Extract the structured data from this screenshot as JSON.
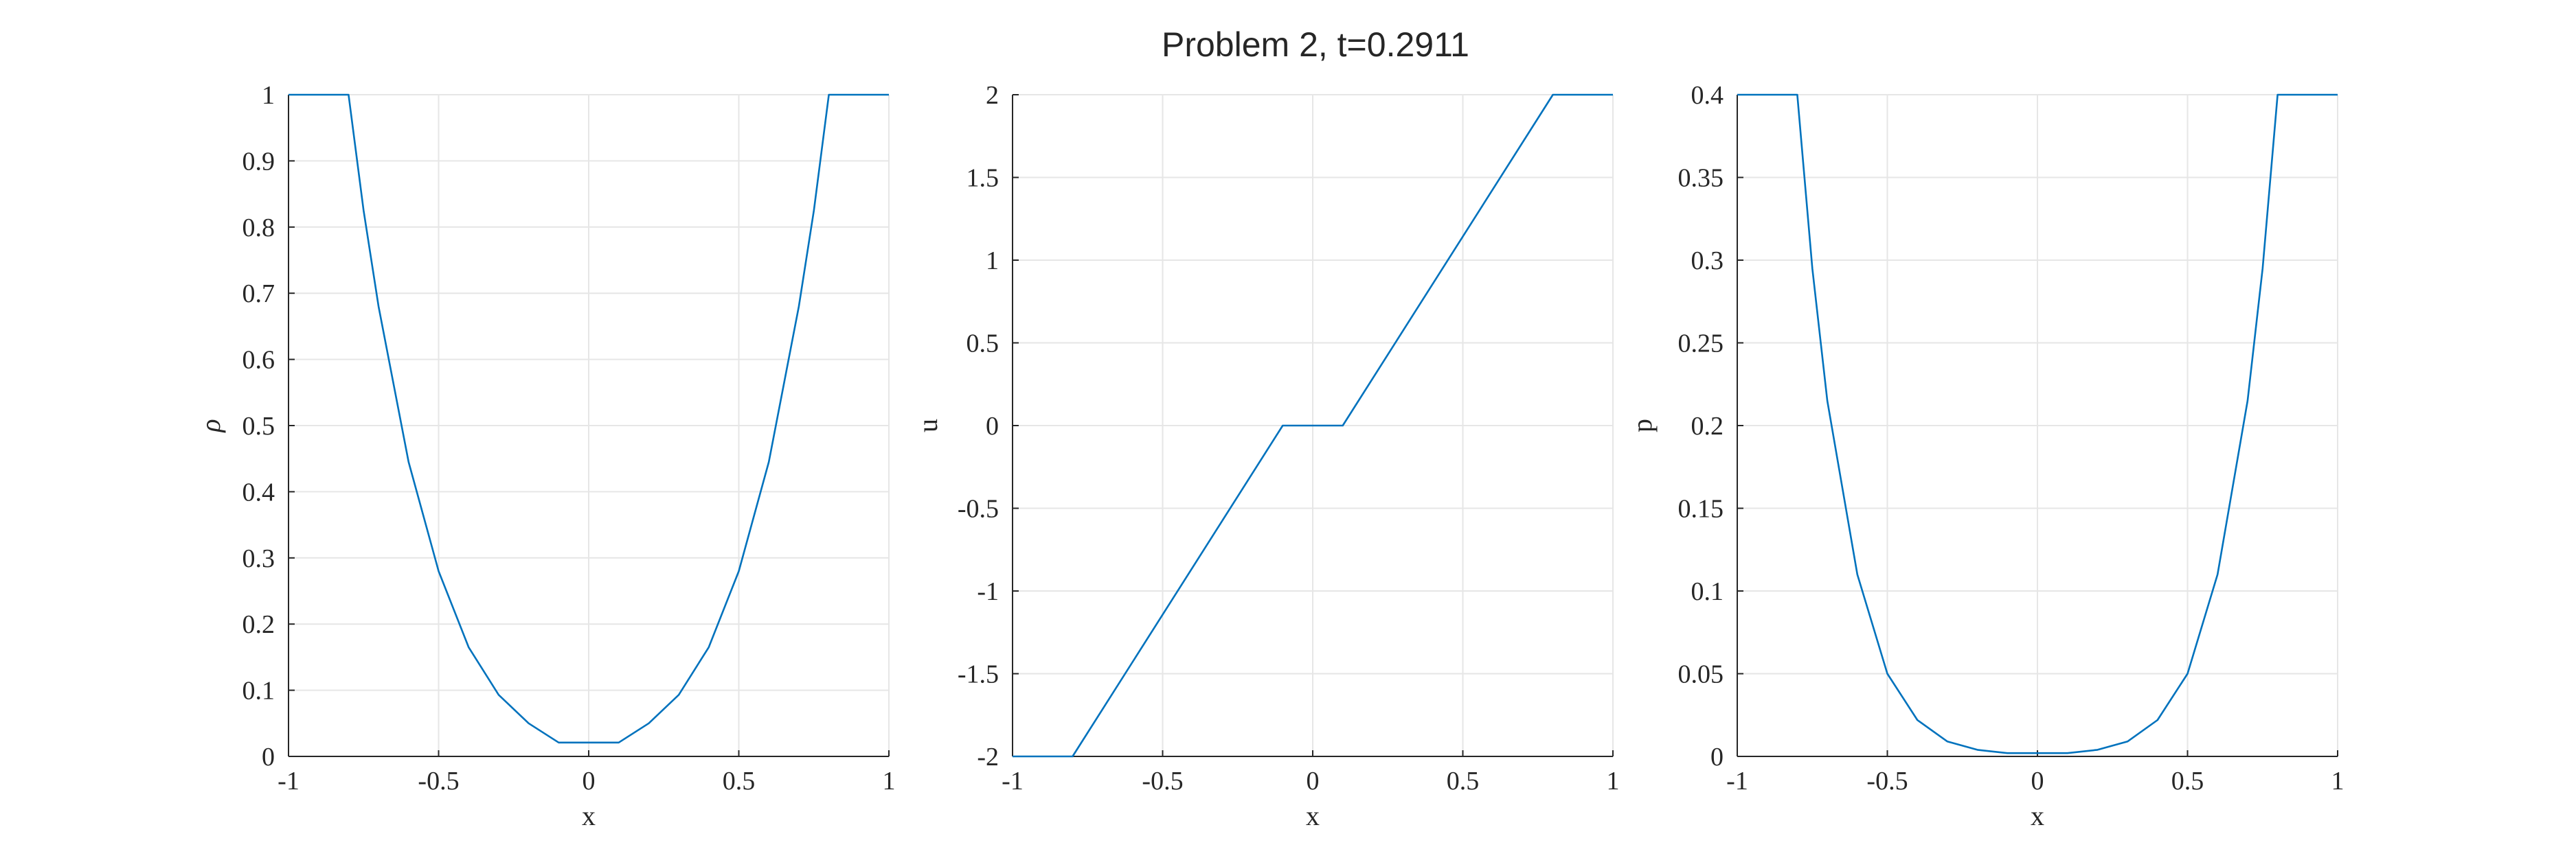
{
  "figure": {
    "title": "Problem 2, t=0.2911"
  },
  "chart_data": [
    {
      "type": "line",
      "title": "",
      "xlabel": "x",
      "ylabel": "ρ",
      "xlim": [
        -1,
        1
      ],
      "ylim": [
        0,
        1
      ],
      "xticks": [
        -1,
        -0.5,
        0,
        0.5,
        1
      ],
      "xtick_labels": [
        "-1",
        "-0.5",
        "0",
        "0.5",
        "1"
      ],
      "yticks": [
        0,
        0.1,
        0.2,
        0.3,
        0.4,
        0.5,
        0.6,
        0.7,
        0.8,
        0.9,
        1
      ],
      "ytick_labels": [
        "0",
        "0.1",
        "0.2",
        "0.3",
        "0.4",
        "0.5",
        "0.6",
        "0.7",
        "0.8",
        "0.9",
        "1"
      ],
      "grid": true,
      "color": "#0072BD",
      "series": [
        {
          "x": [
            -1,
            -0.8,
            -0.75,
            -0.7,
            -0.6,
            -0.5,
            -0.4,
            -0.3,
            -0.2,
            -0.1,
            0.1,
            0.2,
            0.3,
            0.4,
            0.5,
            0.6,
            0.7,
            0.75,
            0.8,
            1
          ],
          "y": [
            1,
            1,
            0.825,
            0.68,
            0.445,
            0.28,
            0.165,
            0.093,
            0.05,
            0.021,
            0.021,
            0.05,
            0.093,
            0.165,
            0.28,
            0.445,
            0.68,
            0.825,
            1,
            1
          ]
        }
      ]
    },
    {
      "type": "line",
      "title": "",
      "xlabel": "x",
      "ylabel": "u",
      "xlim": [
        -1,
        1
      ],
      "ylim": [
        -2,
        2
      ],
      "xticks": [
        -1,
        -0.5,
        0,
        0.5,
        1
      ],
      "xtick_labels": [
        "-1",
        "-0.5",
        "0",
        "0.5",
        "1"
      ],
      "yticks": [
        -2,
        -1.5,
        -1,
        -0.5,
        0,
        0.5,
        1,
        1.5,
        2
      ],
      "ytick_labels": [
        "-2",
        "-1.5",
        "-1",
        "-0.5",
        "0",
        "0.5",
        "1",
        "1.5",
        "2"
      ],
      "grid": true,
      "color": "#0072BD",
      "series": [
        {
          "x": [
            -1,
            -0.8,
            -0.1,
            0.1,
            0.8,
            1
          ],
          "y": [
            -2,
            -2,
            0,
            0,
            2,
            2
          ]
        }
      ]
    },
    {
      "type": "line",
      "title": "",
      "xlabel": "x",
      "ylabel": "p",
      "xlim": [
        -1,
        1
      ],
      "ylim": [
        0,
        0.4
      ],
      "xticks": [
        -1,
        -0.5,
        0,
        0.5,
        1
      ],
      "xtick_labels": [
        "-1",
        "-0.5",
        "0",
        "0.5",
        "1"
      ],
      "yticks": [
        0,
        0.05,
        0.1,
        0.15,
        0.2,
        0.25,
        0.3,
        0.35,
        0.4
      ],
      "ytick_labels": [
        "0",
        "0.05",
        "0.1",
        "0.15",
        "0.2",
        "0.25",
        "0.3",
        "0.35",
        "0.4"
      ],
      "grid": true,
      "color": "#0072BD",
      "series": [
        {
          "x": [
            -1,
            -0.8,
            -0.75,
            -0.7,
            -0.6,
            -0.5,
            -0.4,
            -0.3,
            -0.2,
            -0.1,
            0.1,
            0.2,
            0.3,
            0.4,
            0.5,
            0.6,
            0.7,
            0.75,
            0.8,
            1
          ],
          "y": [
            0.4,
            0.4,
            0.295,
            0.215,
            0.11,
            0.05,
            0.022,
            0.009,
            0.004,
            0.002,
            0.002,
            0.004,
            0.009,
            0.022,
            0.05,
            0.11,
            0.215,
            0.295,
            0.4,
            0.4
          ]
        }
      ]
    }
  ]
}
